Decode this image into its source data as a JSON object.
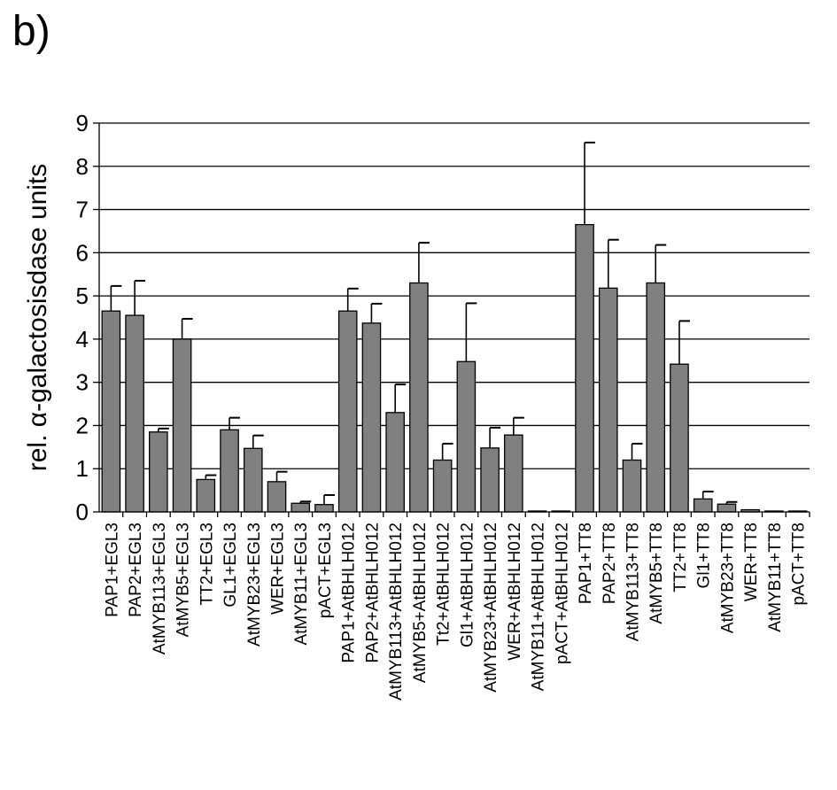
{
  "panel_label": "b)",
  "chart_data": {
    "type": "bar",
    "ylabel": "rel. α-galactosisdase units",
    "xlabel": "",
    "ylim": [
      0,
      9
    ],
    "yticks": [
      0,
      1,
      2,
      3,
      4,
      5,
      6,
      7,
      8,
      9
    ],
    "grid": "horizontal",
    "bar_color": "#808080",
    "categories": [
      "PAP1+EGL3",
      "PAP2+EGL3",
      "AtMYB113+EGL3",
      "AtMYB5+EGL3",
      "TT2+EGL3",
      "GL1+EGL3",
      "AtMYB23+EGL3",
      "WER+EGL3",
      "AtMYB11+EGL3",
      "pACT+EGL3",
      "PAP1+AtBHLH012",
      "PAP2+AtBHLH012",
      "AtMYB113+AtBHLH012",
      "AtMYB5+AtBHLH012",
      "Tt2+AtBHLH012",
      "Gl1+AtBHLH012",
      "AtMYB23+AtBHLH012",
      "WER+AtBHLH012",
      "AtMYB11+AtBHLH012",
      "pACT+AtBHLH012",
      "PAP1+TT8",
      "PAP2+TT8",
      "AtMYB113+TT8",
      "AtMYB5+TT8",
      "TT2+TT8",
      "Gl1+TT8",
      "AtMYB23+TT8",
      "WER+TT8",
      "AtMYB11+TT8",
      "pACT+TT8"
    ],
    "values": [
      4.65,
      4.55,
      1.85,
      4.0,
      0.75,
      1.9,
      1.47,
      0.7,
      0.2,
      0.17,
      4.65,
      4.37,
      2.3,
      5.3,
      1.2,
      3.48,
      1.48,
      1.78,
      0.0,
      0.0,
      6.65,
      5.18,
      1.2,
      5.3,
      3.42,
      0.3,
      0.18,
      0.05,
      0.0,
      0.0
    ],
    "errors": [
      0.58,
      0.8,
      0.08,
      0.47,
      0.1,
      0.28,
      0.3,
      0.23,
      0.04,
      0.22,
      0.52,
      0.45,
      0.65,
      0.93,
      0.38,
      1.35,
      0.47,
      0.4,
      0.0,
      0.0,
      1.9,
      1.12,
      0.38,
      0.88,
      1.0,
      0.17,
      0.05,
      0.0,
      0.0,
      0.0
    ]
  }
}
